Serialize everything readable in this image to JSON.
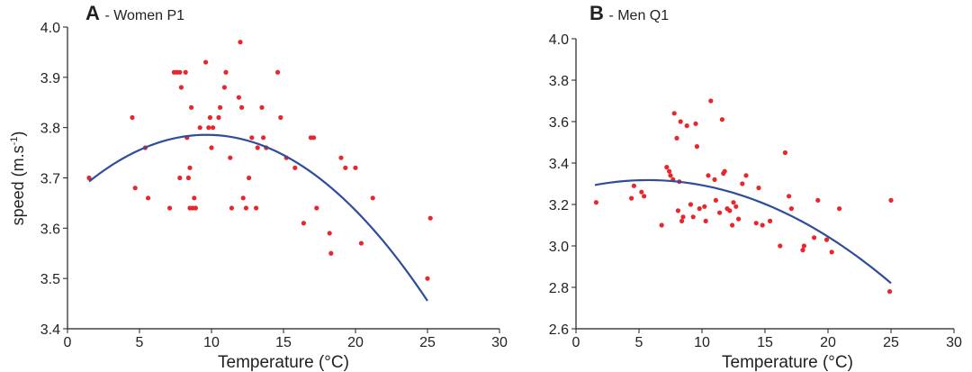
{
  "chart_data": [
    {
      "type": "scatter",
      "panel_letter": "A",
      "title": " - Women P1",
      "xlabel": "Temperature (°C)",
      "ylabel": "speed (m.s",
      "ylabel_sup": "-1",
      "ylabel_close": ")",
      "xlim": [
        0,
        30
      ],
      "ylim": [
        3.4,
        4.0
      ],
      "x_ticks": [
        0,
        5,
        10,
        15,
        20,
        25,
        30
      ],
      "x_tick_labels": [
        "0",
        "5",
        "10",
        "15",
        "20",
        "25",
        "30"
      ],
      "y_ticks": [
        3.4,
        3.5,
        3.6,
        3.7,
        3.8,
        3.9,
        4.0
      ],
      "y_tick_labels": [
        "3.4",
        "3.5",
        "3.6",
        "3.7",
        "3.8",
        "3.9",
        "4.0"
      ],
      "grid": false,
      "point_color": "#e8262b",
      "curve_color": "#2e4d9b",
      "points": [
        {
          "x": 1.5,
          "y": 3.7
        },
        {
          "x": 4.5,
          "y": 3.82
        },
        {
          "x": 4.7,
          "y": 3.68
        },
        {
          "x": 5.4,
          "y": 3.76
        },
        {
          "x": 5.6,
          "y": 3.66
        },
        {
          "x": 7.1,
          "y": 3.64
        },
        {
          "x": 7.4,
          "y": 3.91
        },
        {
          "x": 7.6,
          "y": 3.91
        },
        {
          "x": 7.8,
          "y": 3.91
        },
        {
          "x": 7.8,
          "y": 3.7
        },
        {
          "x": 7.9,
          "y": 3.88
        },
        {
          "x": 8.2,
          "y": 3.91
        },
        {
          "x": 8.3,
          "y": 3.78
        },
        {
          "x": 8.4,
          "y": 3.7
        },
        {
          "x": 8.5,
          "y": 3.64
        },
        {
          "x": 8.5,
          "y": 3.72
        },
        {
          "x": 8.6,
          "y": 3.84
        },
        {
          "x": 8.7,
          "y": 3.64
        },
        {
          "x": 8.8,
          "y": 3.66
        },
        {
          "x": 8.9,
          "y": 3.64
        },
        {
          "x": 9.2,
          "y": 3.8
        },
        {
          "x": 9.6,
          "y": 3.93
        },
        {
          "x": 9.8,
          "y": 3.8
        },
        {
          "x": 9.9,
          "y": 3.82
        },
        {
          "x": 10.0,
          "y": 3.76
        },
        {
          "x": 10.1,
          "y": 3.8
        },
        {
          "x": 10.5,
          "y": 3.82
        },
        {
          "x": 10.6,
          "y": 3.84
        },
        {
          "x": 10.9,
          "y": 3.88
        },
        {
          "x": 11.0,
          "y": 3.91
        },
        {
          "x": 11.3,
          "y": 3.74
        },
        {
          "x": 11.4,
          "y": 3.64
        },
        {
          "x": 11.9,
          "y": 3.86
        },
        {
          "x": 12.0,
          "y": 3.97
        },
        {
          "x": 12.1,
          "y": 3.84
        },
        {
          "x": 12.2,
          "y": 3.66
        },
        {
          "x": 12.4,
          "y": 3.64
        },
        {
          "x": 12.6,
          "y": 3.7
        },
        {
          "x": 12.8,
          "y": 3.78
        },
        {
          "x": 13.1,
          "y": 3.64
        },
        {
          "x": 13.2,
          "y": 3.76
        },
        {
          "x": 13.5,
          "y": 3.84
        },
        {
          "x": 13.6,
          "y": 3.78
        },
        {
          "x": 13.8,
          "y": 3.76
        },
        {
          "x": 14.6,
          "y": 3.91
        },
        {
          "x": 14.8,
          "y": 3.82
        },
        {
          "x": 15.2,
          "y": 3.74
        },
        {
          "x": 15.8,
          "y": 3.72
        },
        {
          "x": 16.4,
          "y": 3.61
        },
        {
          "x": 16.9,
          "y": 3.78
        },
        {
          "x": 17.1,
          "y": 3.78
        },
        {
          "x": 17.3,
          "y": 3.64
        },
        {
          "x": 18.2,
          "y": 3.59
        },
        {
          "x": 18.3,
          "y": 3.55
        },
        {
          "x": 19.0,
          "y": 3.74
        },
        {
          "x": 19.3,
          "y": 3.72
        },
        {
          "x": 20.0,
          "y": 3.72
        },
        {
          "x": 20.4,
          "y": 3.57
        },
        {
          "x": 21.2,
          "y": 3.66
        },
        {
          "x": 25.0,
          "y": 3.5
        },
        {
          "x": 25.2,
          "y": 3.62
        }
      ],
      "curve": {
        "type": "quadratic",
        "x_range": [
          1.5,
          25
        ],
        "coefficients": [
          3.6555,
          0.027,
          -0.0014
        ]
      }
    },
    {
      "type": "scatter",
      "panel_letter": "B",
      "title": " - Men Q1",
      "xlabel": "Temperature (°C)",
      "ylabel": "",
      "xlim": [
        0,
        30
      ],
      "ylim": [
        2.6,
        4.0
      ],
      "x_ticks": [
        0,
        5,
        10,
        15,
        20,
        25,
        30
      ],
      "x_tick_labels": [
        "0",
        "5",
        "10",
        "15",
        "20",
        "25",
        "30"
      ],
      "y_ticks": [
        2.6,
        2.8,
        3.0,
        3.2,
        3.4,
        3.6,
        3.8,
        4.0
      ],
      "y_tick_labels": [
        "2.6",
        "2.8",
        "3.0",
        "3.2",
        "3.4",
        "3.6",
        "3.8",
        "4.0"
      ],
      "grid": false,
      "point_color": "#e8262b",
      "curve_color": "#2e4d9b",
      "points": [
        {
          "x": 1.6,
          "y": 3.21
        },
        {
          "x": 4.4,
          "y": 3.23
        },
        {
          "x": 4.6,
          "y": 3.29
        },
        {
          "x": 5.2,
          "y": 3.26
        },
        {
          "x": 5.4,
          "y": 3.24
        },
        {
          "x": 6.8,
          "y": 3.1
        },
        {
          "x": 7.2,
          "y": 3.38
        },
        {
          "x": 7.4,
          "y": 3.36
        },
        {
          "x": 7.5,
          "y": 3.34
        },
        {
          "x": 7.7,
          "y": 3.32
        },
        {
          "x": 7.8,
          "y": 3.64
        },
        {
          "x": 8.0,
          "y": 3.52
        },
        {
          "x": 8.1,
          "y": 3.17
        },
        {
          "x": 8.2,
          "y": 3.31
        },
        {
          "x": 8.3,
          "y": 3.6
        },
        {
          "x": 8.4,
          "y": 3.12
        },
        {
          "x": 8.5,
          "y": 3.14
        },
        {
          "x": 8.8,
          "y": 3.58
        },
        {
          "x": 9.1,
          "y": 3.2
        },
        {
          "x": 9.3,
          "y": 3.14
        },
        {
          "x": 9.5,
          "y": 3.59
        },
        {
          "x": 9.6,
          "y": 3.48
        },
        {
          "x": 9.8,
          "y": 3.18
        },
        {
          "x": 10.2,
          "y": 3.19
        },
        {
          "x": 10.3,
          "y": 3.12
        },
        {
          "x": 10.5,
          "y": 3.34
        },
        {
          "x": 10.7,
          "y": 3.7
        },
        {
          "x": 11.0,
          "y": 3.32
        },
        {
          "x": 11.1,
          "y": 3.22
        },
        {
          "x": 11.4,
          "y": 3.16
        },
        {
          "x": 11.6,
          "y": 3.61
        },
        {
          "x": 11.7,
          "y": 3.35
        },
        {
          "x": 11.8,
          "y": 3.36
        },
        {
          "x": 12.0,
          "y": 3.18
        },
        {
          "x": 12.2,
          "y": 3.17
        },
        {
          "x": 12.4,
          "y": 3.1
        },
        {
          "x": 12.5,
          "y": 3.21
        },
        {
          "x": 12.7,
          "y": 3.19
        },
        {
          "x": 12.9,
          "y": 3.13
        },
        {
          "x": 13.2,
          "y": 3.3
        },
        {
          "x": 13.5,
          "y": 3.34
        },
        {
          "x": 14.3,
          "y": 3.11
        },
        {
          "x": 14.5,
          "y": 3.28
        },
        {
          "x": 14.8,
          "y": 3.1
        },
        {
          "x": 15.4,
          "y": 3.12
        },
        {
          "x": 16.2,
          "y": 3.0
        },
        {
          "x": 16.6,
          "y": 3.45
        },
        {
          "x": 16.9,
          "y": 3.24
        },
        {
          "x": 17.1,
          "y": 3.18
        },
        {
          "x": 18.0,
          "y": 2.98
        },
        {
          "x": 18.1,
          "y": 3.0
        },
        {
          "x": 18.9,
          "y": 3.04
        },
        {
          "x": 19.2,
          "y": 3.22
        },
        {
          "x": 19.9,
          "y": 3.03
        },
        {
          "x": 20.3,
          "y": 2.97
        },
        {
          "x": 20.9,
          "y": 3.18
        },
        {
          "x": 24.9,
          "y": 2.78
        },
        {
          "x": 25.0,
          "y": 3.22
        }
      ],
      "curve": {
        "type": "quadratic",
        "x_range": [
          1.5,
          25
        ],
        "coefficients": [
          3.274,
          0.01527,
          -0.001337
        ]
      }
    }
  ]
}
